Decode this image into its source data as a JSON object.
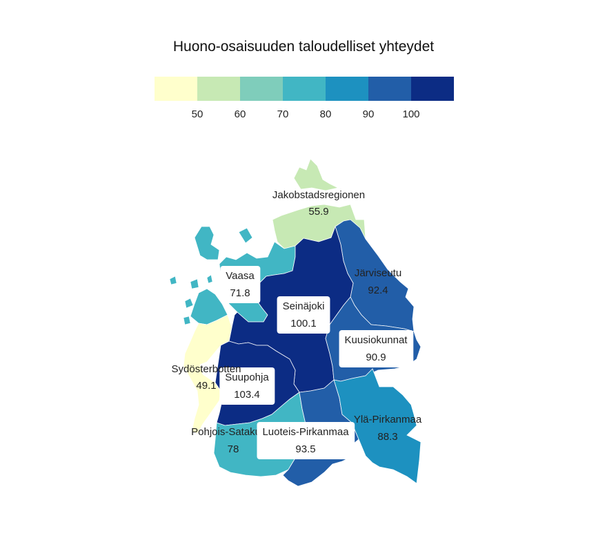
{
  "title": "Huono-osaisuuden taloudelliset yhteydet",
  "legend": {
    "breaks": [
      50,
      60,
      70,
      80,
      90,
      100
    ],
    "tick_labels": [
      "50",
      "60",
      "70",
      "80",
      "90",
      "100"
    ],
    "colors": [
      "#ffffcc",
      "#c7e9b4",
      "#7fcdbb",
      "#41b6c4",
      "#1d91c0",
      "#225ea8",
      "#0c2c84"
    ]
  },
  "regions": [
    {
      "key": "jakobstad",
      "name": "Jakobstadsregionen",
      "value": 55.9,
      "value_label": "55.9"
    },
    {
      "key": "vaasa",
      "name": "Vaasa",
      "value": 71.8,
      "value_label": "71.8"
    },
    {
      "key": "seinajoki",
      "name": "Seinäjoki",
      "value": 100.1,
      "value_label": "100.1"
    },
    {
      "key": "jarviseutu",
      "name": "Järviseutu",
      "value": 92.4,
      "value_label": "92.4"
    },
    {
      "key": "kuusiokunnat",
      "name": "Kuusiokunnat",
      "value": 90.9,
      "value_label": "90.9"
    },
    {
      "key": "sydosterbotten",
      "name": "Sydösterbotten",
      "value": 49.1,
      "value_label": "49.1"
    },
    {
      "key": "suupohja",
      "name": "Suupohja",
      "value": 103.4,
      "value_label": "103.4"
    },
    {
      "key": "pohjois_satakunta",
      "name": "Pohjois-Satakunta",
      "value": 78,
      "value_label": "78"
    },
    {
      "key": "luoteis_pirkanmaa",
      "name": "Luoteis-Pirkanmaa",
      "value": 93.5,
      "value_label": "93.5"
    },
    {
      "key": "yla_pirkanmaa",
      "name": "Ylä-Pirkanmaa",
      "value": 88.3,
      "value_label": "88.3"
    }
  ]
}
